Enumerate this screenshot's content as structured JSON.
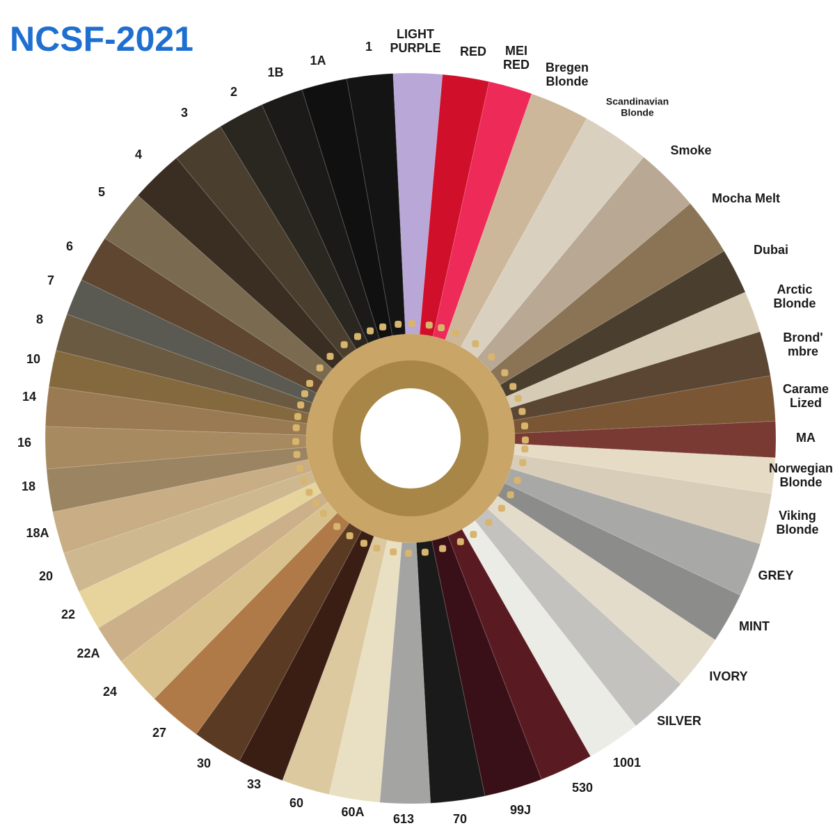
{
  "header": {
    "title": "NCSF-2021"
  },
  "swatches": [
    {
      "lines": [
        "1"
      ],
      "color": "#141414"
    },
    {
      "lines": [
        "LIGHT",
        "PURPLE"
      ],
      "color": "#b9a7d8"
    },
    {
      "lines": [
        "RED"
      ],
      "color": "#d0102a"
    },
    {
      "lines": [
        "MEI",
        "RED"
      ],
      "color": "#ee2a58"
    },
    {
      "lines": [
        "Bregen",
        "Blonde"
      ],
      "color": "#cdb79a"
    },
    {
      "lines": [
        "Scandinavian",
        "Blonde"
      ],
      "color": "#d9d0c0"
    },
    {
      "lines": [
        "Smoke"
      ],
      "color": "#b8a894"
    },
    {
      "lines": [
        "Mocha Melt"
      ],
      "color": "#8a7455"
    },
    {
      "lines": [
        "Dubai"
      ],
      "color": "#4a3e2e"
    },
    {
      "lines": [
        "Arctic",
        "Blonde"
      ],
      "color": "#d6ccb6"
    },
    {
      "lines": [
        "Brond'",
        "mbre"
      ],
      "color": "#5a4632"
    },
    {
      "lines": [
        "Carame",
        "Lized"
      ],
      "color": "#7a5634"
    },
    {
      "lines": [
        "MA"
      ],
      "color": "#7a3a34"
    },
    {
      "lines": [
        "Norwegian",
        "Blonde"
      ],
      "color": "#e6dcc6"
    },
    {
      "lines": [
        "Viking",
        "Blonde"
      ],
      "color": "#d8cdb8"
    },
    {
      "lines": [
        "GREY"
      ],
      "color": "#a8a8a6"
    },
    {
      "lines": [
        "MINT"
      ],
      "color": "#8c8c8a"
    },
    {
      "lines": [
        "IVORY"
      ],
      "color": "#e4dccb"
    },
    {
      "lines": [
        "SILVER"
      ],
      "color": "#c4c2be"
    },
    {
      "lines": [
        "1001"
      ],
      "color": "#ecece6"
    },
    {
      "lines": [
        "530"
      ],
      "color": "#5a1a22"
    },
    {
      "lines": [
        "99J"
      ],
      "color": "#3a1018"
    },
    {
      "lines": [
        "70"
      ],
      "color": "#1a1a1a"
    },
    {
      "lines": [
        "613"
      ],
      "color": "#a4a4a2"
    },
    {
      "lines": [
        "60A"
      ],
      "color": "#e9dfc2"
    },
    {
      "lines": [
        "60"
      ],
      "color": "#dcc9a0"
    },
    {
      "lines": [
        "33"
      ],
      "color": "#3a1e14"
    },
    {
      "lines": [
        "30"
      ],
      "color": "#5a3a22"
    },
    {
      "lines": [
        "27"
      ],
      "color": "#b07a48"
    },
    {
      "lines": [
        "24"
      ],
      "color": "#d9c18e"
    },
    {
      "lines": [
        "22A"
      ],
      "color": "#cbb08a"
    },
    {
      "lines": [
        "22"
      ],
      "color": "#e6d49c"
    },
    {
      "lines": [
        "20"
      ],
      "color": "#cdb890"
    },
    {
      "lines": [
        "18A"
      ],
      "color": "#c9ad85"
    },
    {
      "lines": [
        "18"
      ],
      "color": "#9a8462"
    },
    {
      "lines": [
        "16"
      ],
      "color": "#a88a60"
    },
    {
      "lines": [
        "14"
      ],
      "color": "#9a7a52"
    },
    {
      "lines": [
        "10"
      ],
      "color": "#85693e"
    },
    {
      "lines": [
        "8"
      ],
      "color": "#6b5a42"
    },
    {
      "lines": [
        "7"
      ],
      "color": "#5a5a52"
    },
    {
      "lines": [
        "6"
      ],
      "color": "#5e4630"
    },
    {
      "lines": [
        "5"
      ],
      "color": "#7a6a50"
    },
    {
      "lines": [
        "4"
      ],
      "color": "#3a2e22"
    },
    {
      "lines": [
        "3"
      ],
      "color": "#4a3e2e"
    },
    {
      "lines": [
        "2"
      ],
      "color": "#2a2620"
    },
    {
      "lines": [
        "1B"
      ],
      "color": "#1c1a18"
    },
    {
      "lines": [
        "1A"
      ],
      "color": "#101010"
    }
  ]
}
